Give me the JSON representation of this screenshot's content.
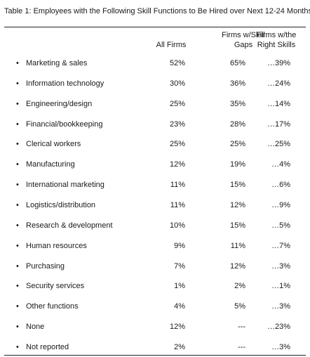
{
  "chart_data": {
    "type": "table",
    "title": "Table 1: Employees with the Following Skill Functions to Be Hired over Next 12-24 Months",
    "columns": [
      "All Firms",
      "Firms w/Skill Gaps",
      "Firms w/the Right Skills"
    ],
    "columns_display": [
      [
        "All Firms"
      ],
      [
        "Firms w/Skill",
        "Gaps"
      ],
      [
        "Firms w/the",
        "Right Skills"
      ]
    ],
    "bullet": "•",
    "rows": [
      {
        "label": "Marketing & sales",
        "values": [
          "52%",
          "65%",
          "…39%"
        ]
      },
      {
        "label": "Information technology",
        "values": [
          "30%",
          "36%",
          "…24%"
        ]
      },
      {
        "label": "Engineering/design",
        "values": [
          "25%",
          "35%",
          "…14%"
        ]
      },
      {
        "label": "Financial/bookkeeping",
        "values": [
          "23%",
          "28%",
          "…17%"
        ]
      },
      {
        "label": "Clerical workers",
        "values": [
          "25%",
          "25%",
          "…25%"
        ]
      },
      {
        "label": "Manufacturing",
        "values": [
          "12%",
          "19%",
          "…4%"
        ]
      },
      {
        "label": "International marketing",
        "values": [
          "11%",
          "15%",
          "…6%"
        ]
      },
      {
        "label": "Logistics/distribution",
        "values": [
          "11%",
          "12%",
          "…9%"
        ]
      },
      {
        "label": "Research & development",
        "values": [
          "10%",
          "15%",
          "…5%"
        ]
      },
      {
        "label": "Human resources",
        "values": [
          "9%",
          "11%",
          "…7%"
        ]
      },
      {
        "label": "Purchasing",
        "values": [
          "7%",
          "12%",
          "…3%"
        ]
      },
      {
        "label": "Security services",
        "values": [
          "1%",
          "2%",
          "…1%"
        ]
      },
      {
        "label": "Other functions",
        "values": [
          "4%",
          "5%",
          "…3%"
        ]
      },
      {
        "label": "None",
        "values": [
          "12%",
          "---",
          "…23%"
        ]
      },
      {
        "label": "Not reported",
        "values": [
          "2%",
          "---",
          "…3%"
        ]
      }
    ]
  }
}
